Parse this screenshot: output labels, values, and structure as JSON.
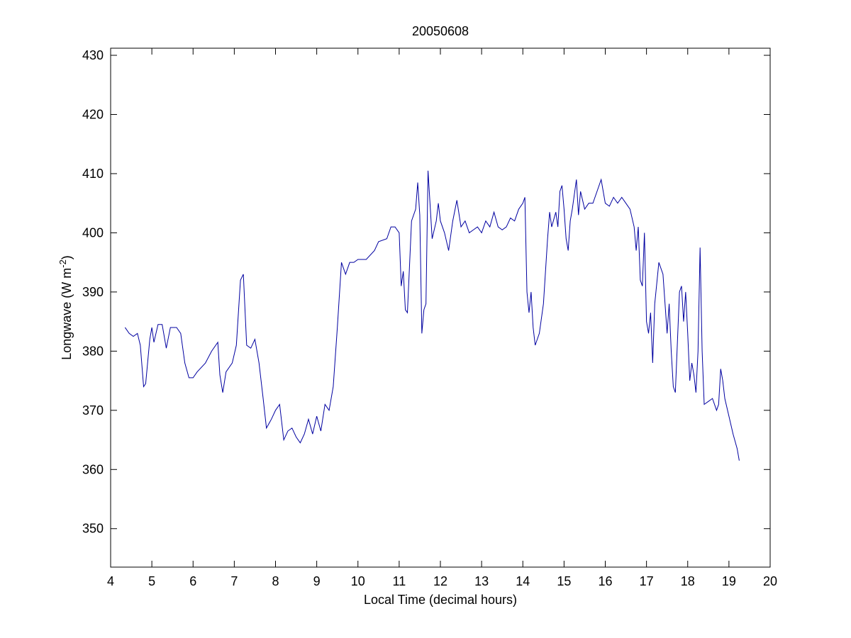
{
  "chart_data": {
    "type": "line",
    "title": "20050608",
    "xlabel": "Local Time (decimal hours)",
    "ylabel": {
      "text": "Longwave (W m",
      "superscript": "-2",
      "suffix": ")"
    },
    "xlim": [
      4,
      20
    ],
    "ylim": [
      343.5,
      431.2
    ],
    "xticks": [
      4,
      5,
      6,
      7,
      8,
      9,
      10,
      11,
      12,
      13,
      14,
      15,
      16,
      17,
      18,
      19,
      20
    ],
    "yticks": [
      350,
      360,
      370,
      380,
      390,
      400,
      410,
      420,
      430
    ],
    "series": [
      {
        "color": "#0000a0",
        "x": [
          4.35,
          4.45,
          4.55,
          4.65,
          4.72,
          4.8,
          4.85,
          4.95,
          5.0,
          5.05,
          5.15,
          5.25,
          5.35,
          5.45,
          5.6,
          5.7,
          5.8,
          5.9,
          6.0,
          6.1,
          6.3,
          6.45,
          6.6,
          6.65,
          6.72,
          6.8,
          6.95,
          7.05,
          7.15,
          7.22,
          7.3,
          7.4,
          7.5,
          7.6,
          7.7,
          7.78,
          7.9,
          8.0,
          8.1,
          8.2,
          8.3,
          8.4,
          8.5,
          8.6,
          8.7,
          8.8,
          8.9,
          9.0,
          9.1,
          9.2,
          9.3,
          9.4,
          9.5,
          9.6,
          9.7,
          9.8,
          9.9,
          10.0,
          10.2,
          10.4,
          10.5,
          10.7,
          10.8,
          10.9,
          11.0,
          11.05,
          11.1,
          11.15,
          11.2,
          11.3,
          11.4,
          11.45,
          11.5,
          11.55,
          11.6,
          11.65,
          11.7,
          11.8,
          11.9,
          11.95,
          12.0,
          12.1,
          12.2,
          12.3,
          12.4,
          12.5,
          12.6,
          12.7,
          12.8,
          12.9,
          13.0,
          13.1,
          13.2,
          13.3,
          13.4,
          13.5,
          13.6,
          13.7,
          13.8,
          13.9,
          14.0,
          14.05,
          14.1,
          14.15,
          14.2,
          14.25,
          14.3,
          14.4,
          14.5,
          14.6,
          14.65,
          14.7,
          14.8,
          14.85,
          14.9,
          14.95,
          15.0,
          15.05,
          15.1,
          15.15,
          15.2,
          15.3,
          15.35,
          15.4,
          15.5,
          15.6,
          15.7,
          15.8,
          15.9,
          16.0,
          16.1,
          16.2,
          16.3,
          16.4,
          16.5,
          16.6,
          16.7,
          16.75,
          16.8,
          16.85,
          16.9,
          16.95,
          17.0,
          17.05,
          17.1,
          17.15,
          17.2,
          17.3,
          17.4,
          17.5,
          17.55,
          17.6,
          17.65,
          17.7,
          17.8,
          17.85,
          17.9,
          17.95,
          18.0,
          18.05,
          18.1,
          18.15,
          18.2,
          18.25,
          18.3,
          18.35,
          18.4,
          18.5,
          18.6,
          18.7,
          18.75,
          18.8,
          18.85,
          18.9,
          19.0,
          19.1,
          19.2,
          19.25
        ],
        "values": [
          384,
          383,
          382.5,
          383,
          381,
          374,
          374.5,
          382,
          384,
          381.5,
          384.5,
          384.5,
          380.5,
          384,
          384,
          383,
          378,
          375.5,
          375.5,
          376.5,
          378,
          380,
          381.5,
          376,
          373,
          376.5,
          378,
          381,
          392,
          393,
          381,
          380.5,
          382,
          378,
          372,
          367,
          368.5,
          370,
          371,
          365,
          366.5,
          367,
          365.5,
          364.5,
          366,
          368.5,
          366,
          369,
          366.5,
          371,
          370,
          374,
          384,
          395,
          393,
          395,
          395,
          395.5,
          395.5,
          397,
          398.5,
          399,
          401,
          401,
          400,
          391,
          393.5,
          387,
          386.5,
          402,
          404,
          408.5,
          403,
          383,
          387,
          388,
          410.5,
          399,
          402,
          405,
          402,
          400,
          397,
          402,
          405.5,
          401,
          402,
          400,
          400.5,
          401,
          400,
          402,
          401,
          403.5,
          401,
          400.5,
          401,
          402.5,
          402,
          404,
          405,
          406,
          390,
          386.5,
          390,
          384,
          381,
          383,
          388,
          399,
          403.5,
          401,
          403.5,
          401,
          407,
          408,
          404,
          399,
          397,
          402,
          404,
          409,
          403,
          407,
          404,
          405,
          405,
          407,
          409,
          405,
          404.5,
          406,
          405,
          406,
          405,
          404,
          401,
          397,
          401,
          392,
          391,
          400,
          385,
          383,
          386.5,
          378,
          388,
          395,
          393,
          383,
          388,
          380,
          374,
          373,
          390,
          391,
          385,
          390,
          383,
          375,
          378,
          376,
          373,
          380,
          397.5,
          380,
          371,
          371.5,
          372,
          370,
          371,
          377,
          375,
          372,
          369,
          366,
          363.5,
          361.5
        ]
      }
    ]
  }
}
